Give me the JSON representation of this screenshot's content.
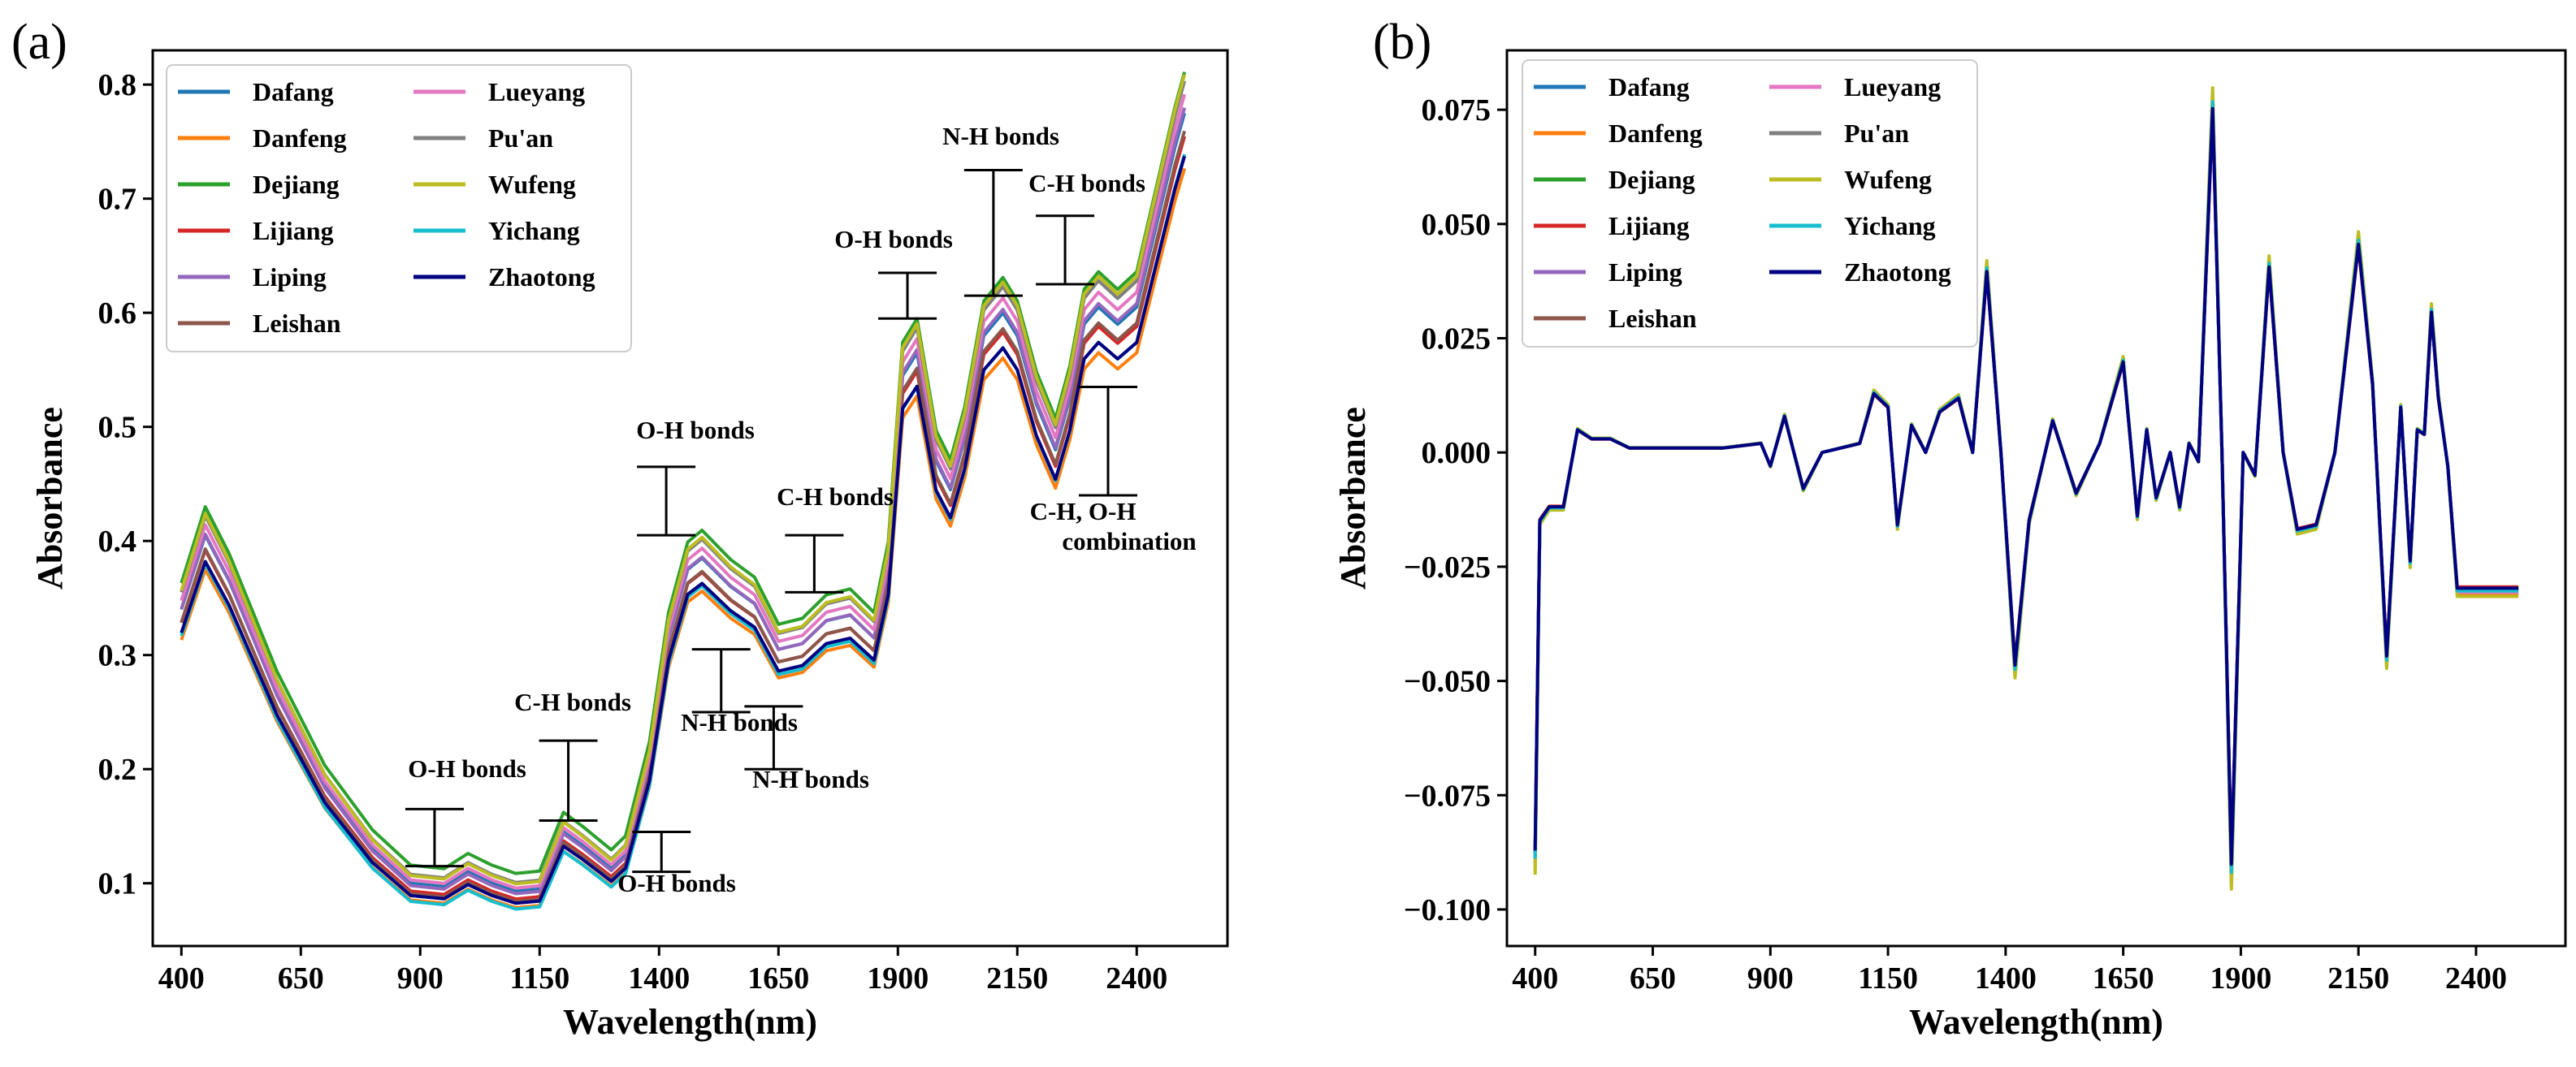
{
  "chart_data": [
    {
      "type": "line",
      "panel_label": "(a)",
      "xlabel": "Wavelength(nm)",
      "ylabel": "Absorbance",
      "xlim": [
        340,
        2590
      ],
      "ylim": [
        0.045,
        0.83
      ],
      "xticks": [
        400,
        650,
        900,
        1150,
        1400,
        1650,
        1900,
        2150,
        2400
      ],
      "yticks": [
        0.1,
        0.2,
        0.3,
        0.4,
        0.5,
        0.6,
        0.7,
        0.8
      ],
      "ytick_labels": [
        "0.1",
        "0.2",
        "0.3",
        "0.4",
        "0.5",
        "0.6",
        "0.7",
        "0.8"
      ],
      "legend_position": "top-left",
      "x": [
        400,
        450,
        500,
        600,
        700,
        800,
        880,
        950,
        1000,
        1050,
        1100,
        1150,
        1200,
        1240,
        1300,
        1330,
        1380,
        1420,
        1460,
        1490,
        1550,
        1600,
        1650,
        1700,
        1750,
        1800,
        1850,
        1880,
        1910,
        1940,
        1980,
        2010,
        2040,
        2080,
        2120,
        2150,
        2190,
        2230,
        2260,
        2290,
        2320,
        2360,
        2400,
        2440,
        2480,
        2500
      ],
      "base": [
        0.335,
        0.4,
        0.36,
        0.26,
        0.18,
        0.125,
        0.095,
        0.092,
        0.105,
        0.095,
        0.088,
        0.09,
        0.14,
        0.128,
        0.108,
        0.12,
        0.2,
        0.31,
        0.37,
        0.38,
        0.355,
        0.34,
        0.3,
        0.305,
        0.325,
        0.33,
        0.31,
        0.37,
        0.54,
        0.56,
        0.465,
        0.44,
        0.485,
        0.575,
        0.595,
        0.575,
        0.515,
        0.475,
        0.52,
        0.585,
        0.6,
        0.585,
        0.6,
        0.67,
        0.74,
        0.77
      ],
      "series": [
        {
          "name": "Dafang",
          "color": "#1f77b4",
          "offset": 0.005,
          "scale": 1.0
        },
        {
          "name": "Danfeng",
          "color": "#ff7f0e",
          "offset": -0.005,
          "scale": 0.95
        },
        {
          "name": "Dejiang",
          "color": "#2ca02c",
          "offset": 0.018,
          "scale": 1.03
        },
        {
          "name": "Lijiang",
          "color": "#d62728",
          "offset": 0.0,
          "scale": 0.98
        },
        {
          "name": "Liping",
          "color": "#9467bd",
          "offset": 0.002,
          "scale": 1.01
        },
        {
          "name": "Leishan",
          "color": "#8c564b",
          "offset": -0.003,
          "scale": 0.99
        },
        {
          "name": "Lueyang",
          "color": "#e377c2",
          "offset": 0.006,
          "scale": 1.02
        },
        {
          "name": "Pu'an",
          "color": "#7f7f7f",
          "offset": 0.01,
          "scale": 1.03
        },
        {
          "name": "Wufeng",
          "color": "#bcbd22",
          "offset": 0.008,
          "scale": 1.04
        },
        {
          "name": "Yichang",
          "color": "#17becf",
          "offset": -0.008,
          "scale": 0.97
        },
        {
          "name": "Zhaotong",
          "color": "#000080",
          "offset": -0.002,
          "scale": 0.96
        }
      ],
      "annotations": [
        {
          "text": "O-H bonds",
          "bracket_x": 930,
          "bracket_y": [
            0.115,
            0.165
          ]
        },
        {
          "text": "C-H bonds",
          "bracket_x": 1210,
          "bracket_y": [
            0.155,
            0.225
          ]
        },
        {
          "text": "O-H bonds",
          "bracket_x": 1405,
          "bracket_y": [
            0.11,
            0.145
          ]
        },
        {
          "text": "O-H bonds",
          "bracket_x": 1415,
          "bracket_y": [
            0.405,
            0.465
          ]
        },
        {
          "text": "N-H bonds",
          "bracket_x": 1530,
          "bracket_y": [
            0.25,
            0.305
          ]
        },
        {
          "text": "N-H bonds",
          "bracket_x": 1640,
          "bracket_y": [
            0.2,
            0.255
          ]
        },
        {
          "text": "C-H bonds",
          "bracket_x": 1725,
          "bracket_y": [
            0.355,
            0.405
          ]
        },
        {
          "text": "O-H bonds",
          "bracket_x": 1920,
          "bracket_y": [
            0.595,
            0.635
          ]
        },
        {
          "text": "N-H bonds",
          "bracket_x": 2100,
          "bracket_y": [
            0.615,
            0.725
          ]
        },
        {
          "text": "C-H bonds",
          "bracket_x": 2250,
          "bracket_y": [
            0.625,
            0.685
          ]
        },
        {
          "text": "C-H, O-H",
          "bracket_x": 2340,
          "bracket_y": [
            0.44,
            0.535
          ]
        },
        {
          "text": "combination"
        }
      ]
    },
    {
      "type": "line",
      "panel_label": "(b)",
      "xlabel": "Wavelength(nm)",
      "ylabel": "Absorbance",
      "xlim": [
        340,
        2590
      ],
      "ylim": [
        -0.108,
        0.088
      ],
      "xticks": [
        400,
        650,
        900,
        1150,
        1400,
        1650,
        1900,
        2150,
        2400
      ],
      "yticks": [
        -0.1,
        -0.075,
        -0.05,
        -0.025,
        0.0,
        0.025,
        0.05,
        0.075
      ],
      "ytick_labels": [
        "−0.100",
        "−0.075",
        "−0.050",
        "−0.025",
        "0.000",
        "0.025",
        "0.050",
        "0.075"
      ],
      "legend_position": "top-left",
      "x": [
        400,
        410,
        430,
        460,
        490,
        520,
        560,
        600,
        700,
        800,
        880,
        900,
        930,
        970,
        1010,
        1050,
        1090,
        1120,
        1150,
        1170,
        1200,
        1230,
        1260,
        1300,
        1330,
        1360,
        1390,
        1420,
        1450,
        1500,
        1550,
        1600,
        1650,
        1680,
        1700,
        1720,
        1750,
        1770,
        1790,
        1810,
        1840,
        1860,
        1880,
        1905,
        1930,
        1960,
        1990,
        2020,
        2060,
        2100,
        2150,
        2180,
        2210,
        2240,
        2260,
        2275,
        2290,
        2305,
        2320,
        2340,
        2360,
        2380,
        2400,
        2450,
        2490
      ],
      "base": [
        -0.088,
        -0.015,
        -0.012,
        -0.012,
        0.005,
        0.003,
        0.003,
        0.001,
        0.001,
        0.001,
        0.002,
        -0.003,
        0.008,
        -0.008,
        0.0,
        0.001,
        0.002,
        0.013,
        0.01,
        -0.016,
        0.006,
        0.0,
        0.009,
        0.012,
        0.0,
        0.04,
        0.0,
        -0.047,
        -0.015,
        0.007,
        -0.009,
        0.002,
        0.02,
        -0.014,
        0.005,
        -0.01,
        0.0,
        -0.012,
        0.002,
        -0.002,
        0.076,
        0.0,
        -0.091,
        0.0,
        -0.005,
        0.041,
        0.0,
        -0.017,
        -0.016,
        0.0,
        0.046,
        0.015,
        -0.045,
        0.01,
        -0.024,
        0.005,
        0.004,
        0.031,
        0.012,
        -0.003,
        -0.03,
        -0.03,
        -0.03,
        -0.03,
        -0.03
      ],
      "series": [
        {
          "name": "Dafang",
          "color": "#1f77b4",
          "offset": 0.0,
          "scale": 1.0
        },
        {
          "name": "Danfeng",
          "color": "#ff7f0e",
          "offset": 0.0,
          "scale": 1.04
        },
        {
          "name": "Dejiang",
          "color": "#2ca02c",
          "offset": 0.0,
          "scale": 1.02
        },
        {
          "name": "Lijiang",
          "color": "#d62728",
          "offset": 0.0,
          "scale": 0.98
        },
        {
          "name": "Liping",
          "color": "#9467bd",
          "offset": 0.0,
          "scale": 1.01
        },
        {
          "name": "Leishan",
          "color": "#8c564b",
          "offset": 0.0,
          "scale": 0.99
        },
        {
          "name": "Lueyang",
          "color": "#e377c2",
          "offset": 0.0,
          "scale": 1.02
        },
        {
          "name": "Pu'an",
          "color": "#7f7f7f",
          "offset": 0.0,
          "scale": 1.0
        },
        {
          "name": "Wufeng",
          "color": "#bcbd22",
          "offset": 0.0,
          "scale": 1.05
        },
        {
          "name": "Yichang",
          "color": "#17becf",
          "offset": 0.0,
          "scale": 1.01
        },
        {
          "name": "Zhaotong",
          "color": "#000080",
          "offset": 0.0,
          "scale": 0.99
        }
      ],
      "annotations": []
    }
  ]
}
